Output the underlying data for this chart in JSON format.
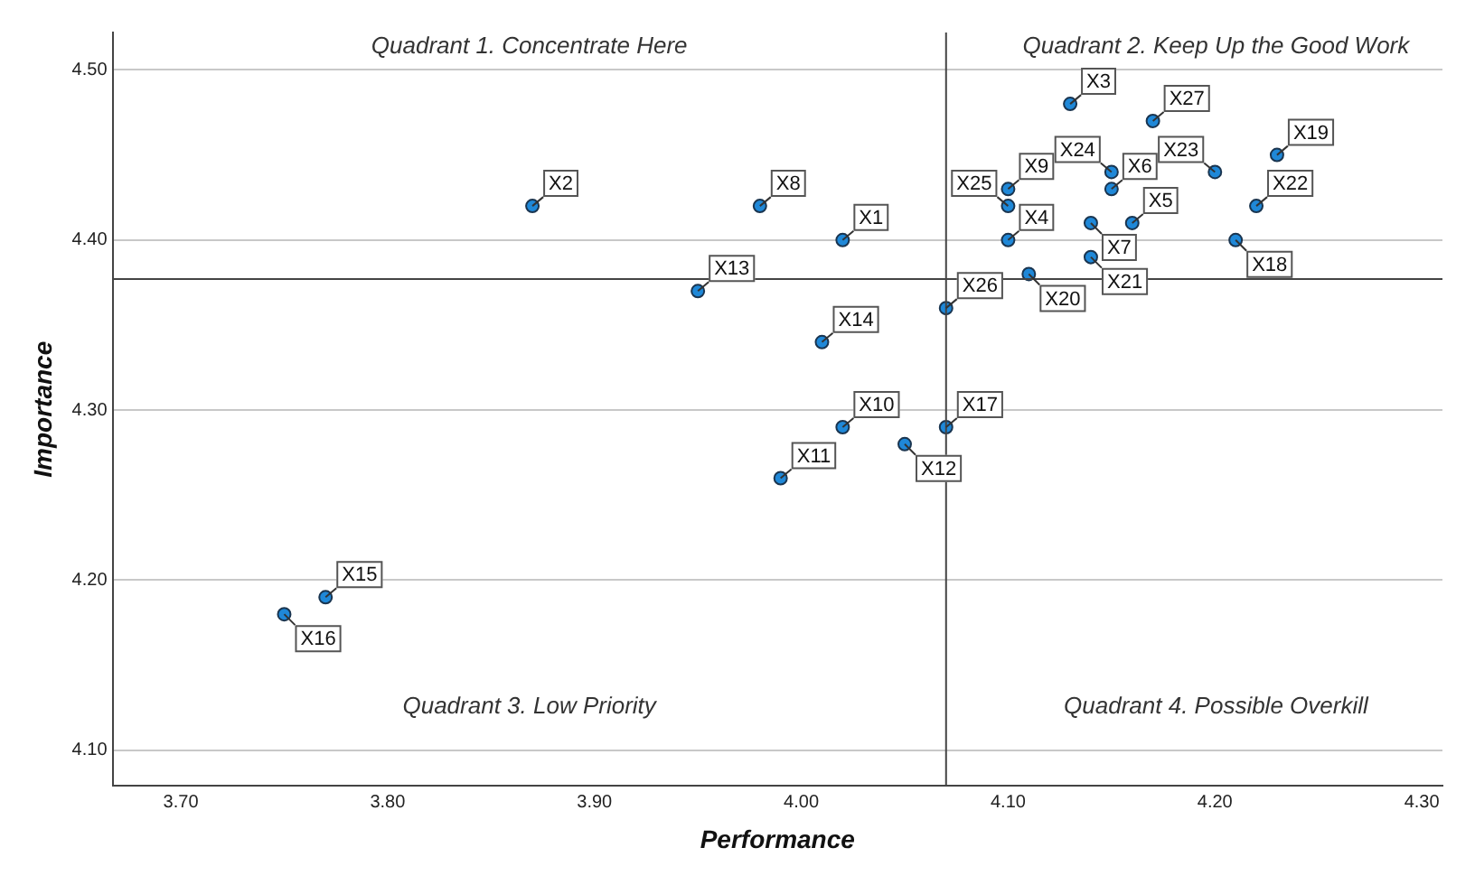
{
  "chart_data": {
    "type": "scatter",
    "xlabel": "Performance",
    "ylabel": "Importance",
    "annotations": [
      "Quadrant 1. Concentrate Here",
      "Quadrant 2. Keep Up the Good Work",
      "Quadrant 3. Low Priority",
      "Quadrant 4. Possible Overkill"
    ],
    "x": [
      4.02,
      3.87,
      4.13,
      4.1,
      4.16,
      4.15,
      4.14,
      3.98,
      4.1,
      4.02,
      3.99,
      4.05,
      3.95,
      4.01,
      3.77,
      3.75,
      4.07,
      4.21,
      4.23,
      4.11,
      4.14,
      4.22,
      4.2,
      4.15,
      4.1,
      4.07,
      4.17
    ],
    "values": [
      4.4,
      4.42,
      4.48,
      4.4,
      4.41,
      4.43,
      4.41,
      4.42,
      4.43,
      4.29,
      4.26,
      4.28,
      4.37,
      4.34,
      4.19,
      4.18,
      4.29,
      4.4,
      4.45,
      4.38,
      4.39,
      4.42,
      4.44,
      4.44,
      4.42,
      4.36,
      4.47
    ],
    "value_labels": [
      "X1",
      "X2",
      "X3",
      "X4",
      "X5",
      "X6",
      "X7",
      "X8",
      "X9",
      "X10",
      "X11",
      "X12",
      "X13",
      "X14",
      "X15",
      "X16",
      "X17",
      "X18",
      "X19",
      "X20",
      "X21",
      "X22",
      "X23",
      "X24",
      "X25",
      "X26",
      "X27"
    ],
    "color": "#1f88d8",
    "marker": "circle",
    "xlim": [
      3.667,
      4.31
    ],
    "ylim": [
      4.079,
      4.522
    ],
    "xticks": [
      {
        "value": 3.7,
        "label": "3.70"
      },
      {
        "value": 3.8,
        "label": "3.80"
      },
      {
        "value": 3.9,
        "label": "3.90"
      },
      {
        "value": 4.0,
        "label": "4.00"
      },
      {
        "value": 4.1,
        "label": "4.10"
      },
      {
        "value": 4.2,
        "label": "4.20"
      },
      {
        "value": 4.3,
        "label": "4.30"
      }
    ],
    "yticks": [
      {
        "value": 4.1,
        "label": "4.10"
      },
      {
        "value": 4.2,
        "label": "4.20"
      },
      {
        "value": 4.3,
        "label": "4.30"
      },
      {
        "value": 4.4,
        "label": "4.40"
      },
      {
        "value": 4.5,
        "label": "4.50"
      }
    ],
    "grid": "y",
    "legend": false,
    "ref_lines": [
      {
        "axis": "x",
        "value": 4.07
      },
      {
        "axis": "y",
        "value": 4.377
      }
    ]
  }
}
